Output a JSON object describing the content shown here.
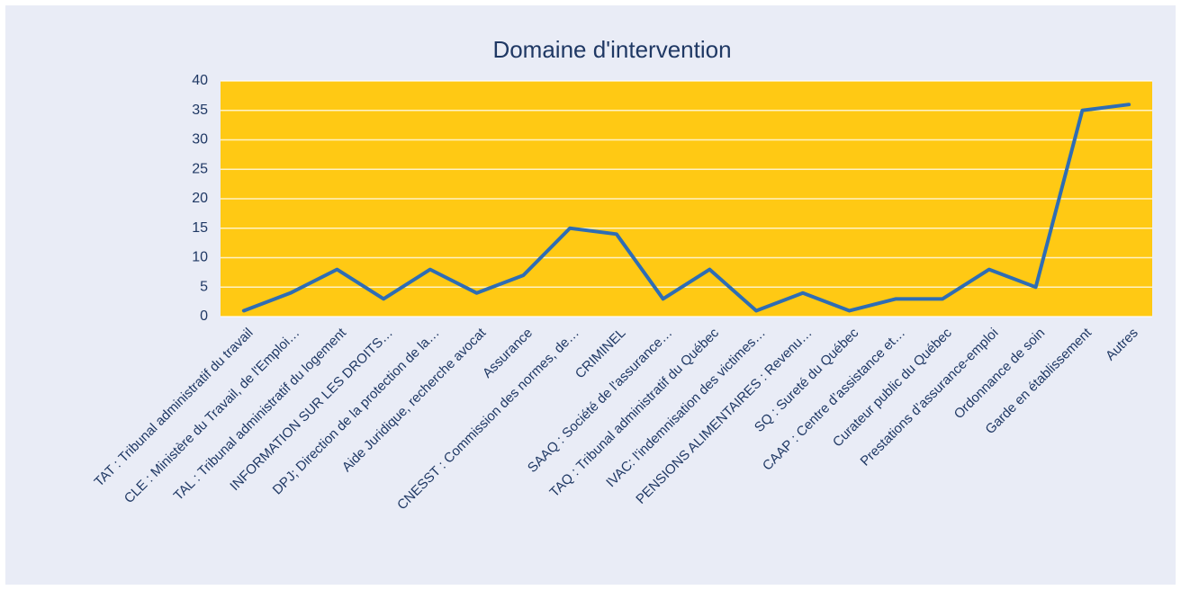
{
  "chart_data": {
    "type": "line",
    "title": "Domaine d'intervention",
    "categories": [
      "TAT : Tribunal administratif du travail",
      "CLE : Ministère du Travail, de l'Emploi…",
      "TAL : Tribunal administratif du logement",
      "INFORMATION SUR LES DROITS…",
      "DPJ; Direction de la protection de la…",
      "Aide Juridique, recherche avocat",
      "Assurance",
      "CNESST : Commission des normes, de…",
      "CRIMINEL",
      "SAAQ : Société de l'assurance…",
      "TAQ : Tribunal administratif du Québec",
      "IVAC: l'indemnisation des victimes…",
      "PENSIONS ALIMENTAIRES : Revenu…",
      "SQ : Sureté du Québec",
      "CAAP : Centre d’assistance et…",
      "Curateur public du Québec",
      "Prestations d’assurance-emploi",
      "Ordonnance de soin",
      "Garde en établissement",
      "Autres"
    ],
    "values": [
      1,
      4,
      8,
      3,
      8,
      4,
      7,
      15,
      14,
      3,
      8,
      1,
      4,
      1,
      3,
      3,
      8,
      5,
      35,
      36
    ],
    "color": "#2e6db4",
    "plot_background": "#ffc914",
    "ylim": [
      0,
      40
    ],
    "yticks": [
      0,
      5,
      10,
      15,
      20,
      25,
      30,
      35,
      40
    ],
    "grid": true
  }
}
